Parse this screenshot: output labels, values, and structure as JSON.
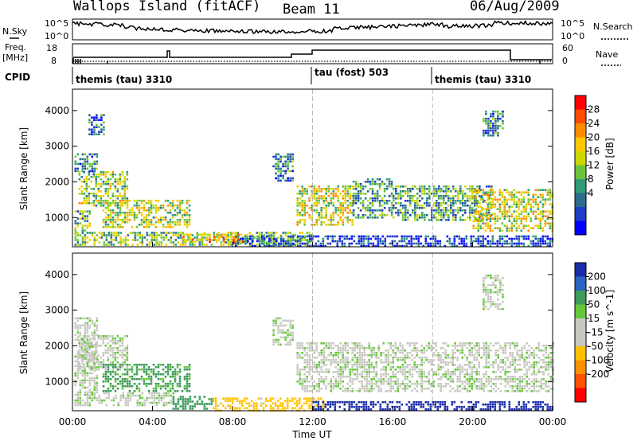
{
  "header": {
    "station": "Wallops Island (fitACF)",
    "beam": "Beam 11",
    "date": "06/Aug/2009"
  },
  "noise_panel": {
    "left_label": "N.Sky",
    "left_ticks": [
      "10^5",
      "10^0"
    ],
    "right_ticks": [
      "10^5",
      "10^0"
    ],
    "right_label": "N.Search"
  },
  "freq_panel": {
    "left_label_line1": "Freq.",
    "left_label_line2": "[MHz]",
    "left_ticks": [
      "18",
      "8"
    ],
    "right_ticks": [
      "60",
      "0"
    ],
    "right_label": "Nave"
  },
  "cpid_panel": {
    "label": "CPID",
    "segments": [
      {
        "name": "themis (tau) 3310",
        "start_hour": 0,
        "end_hour": 12
      },
      {
        "name": "tau (fost) 503",
        "start_hour": 12,
        "end_hour": 18
      },
      {
        "name": "themis (tau) 3310",
        "start_hour": 18,
        "end_hour": 24
      }
    ]
  },
  "power_colorbar": {
    "label": "Power [dB]",
    "ticks": [
      "28",
      "24",
      "20",
      "16",
      "12",
      "8",
      "4"
    ],
    "colors": [
      "#ff0000",
      "#ff4a00",
      "#ff8c00",
      "#ffc800",
      "#ccd800",
      "#6cc43c",
      "#2e9c74",
      "#2a6c8a",
      "#1e3cc8",
      "#0000ff"
    ]
  },
  "velocity_colorbar": {
    "label": "Velocity [m s^-1]",
    "ticks": [
      "200",
      "100",
      "50",
      "15",
      "-15",
      "-50",
      "-100",
      "-200"
    ],
    "colors": [
      "#1a2ca8",
      "#2a64c0",
      "#3c9a5a",
      "#66c838",
      "#c8c8c0",
      "#c8c8c0",
      "#ffc000",
      "#ff9000",
      "#ff5000",
      "#ff0000"
    ]
  },
  "chart_data": [
    {
      "type": "heatmap",
      "name": "power",
      "ylabel": "Slant Range [km]",
      "yticks": [
        1000,
        2000,
        3000,
        4000
      ],
      "ylim": [
        180,
        4600
      ],
      "xlim": [
        0,
        24
      ],
      "regions": [
        {
          "t0": 0.3,
          "t1": 2.8,
          "r0": 1300,
          "r1": 2300,
          "v": 16
        },
        {
          "t0": 0.1,
          "t1": 1.2,
          "r0": 2300,
          "r1": 2800,
          "v": 10
        },
        {
          "t0": 0.8,
          "t1": 1.6,
          "r0": 3300,
          "r1": 3900,
          "v": 8
        },
        {
          "t0": 1.5,
          "t1": 5.8,
          "r0": 700,
          "r1": 1500,
          "v": 17
        },
        {
          "t0": 0.1,
          "t1": 0.9,
          "r0": 600,
          "r1": 1200,
          "v": 14
        },
        {
          "t0": 0.1,
          "t1": 12.0,
          "r0": 200,
          "r1": 600,
          "v": 15
        },
        {
          "t0": 5.5,
          "t1": 8.5,
          "r0": 300,
          "r1": 550,
          "v": 22
        },
        {
          "t0": 8.0,
          "t1": 12.0,
          "r0": 200,
          "r1": 500,
          "v": 8
        },
        {
          "t0": 10.0,
          "t1": 11.0,
          "r0": 2000,
          "r1": 2800,
          "v": 10
        },
        {
          "t0": 11.2,
          "t1": 14.0,
          "r0": 800,
          "r1": 1900,
          "v": 18
        },
        {
          "t0": 14.0,
          "t1": 16.0,
          "r0": 1000,
          "r1": 2100,
          "v": 12
        },
        {
          "t0": 16.0,
          "t1": 21.0,
          "r0": 900,
          "r1": 1900,
          "v": 12
        },
        {
          "t0": 20.0,
          "t1": 24.0,
          "r0": 600,
          "r1": 1800,
          "v": 18
        },
        {
          "t0": 12.0,
          "t1": 24.0,
          "r0": 200,
          "r1": 500,
          "v": 6
        },
        {
          "t0": 20.5,
          "t1": 21.5,
          "r0": 3300,
          "r1": 4000,
          "v": 10
        }
      ]
    },
    {
      "type": "heatmap",
      "name": "velocity",
      "ylabel": "Slant Range [km]",
      "yticks": [
        1000,
        2000,
        3000,
        4000
      ],
      "ylim": [
        180,
        4600
      ],
      "xlim": [
        0,
        24
      ],
      "xticks": [
        "00:00",
        "04:00",
        "08:00",
        "12:00",
        "16:00",
        "20:00",
        "00:00"
      ],
      "xlabel": "Time UT",
      "regions": [
        {
          "t0": 0.3,
          "t1": 2.8,
          "r0": 1300,
          "r1": 2300,
          "v": 0
        },
        {
          "t0": 1.5,
          "t1": 5.8,
          "r0": 700,
          "r1": 1500,
          "v": 40
        },
        {
          "t0": 0.1,
          "t1": 1.2,
          "r0": 600,
          "r1": 2800,
          "v": 0
        },
        {
          "t0": 0.1,
          "t1": 5.0,
          "r0": 300,
          "r1": 700,
          "v": 0
        },
        {
          "t0": 5.0,
          "t1": 7.0,
          "r0": 250,
          "r1": 600,
          "v": 60
        },
        {
          "t0": 7.0,
          "t1": 12.5,
          "r0": 200,
          "r1": 550,
          "v": -45
        },
        {
          "t0": 10.0,
          "t1": 11.0,
          "r0": 2000,
          "r1": 2800,
          "v": 0
        },
        {
          "t0": 11.2,
          "t1": 24.0,
          "r0": 700,
          "r1": 2100,
          "v": 0
        },
        {
          "t0": 12.0,
          "t1": 24.0,
          "r0": 200,
          "r1": 450,
          "v": 200
        },
        {
          "t0": 20.5,
          "t1": 21.5,
          "r0": 3000,
          "r1": 4000,
          "v": 0
        }
      ]
    }
  ]
}
